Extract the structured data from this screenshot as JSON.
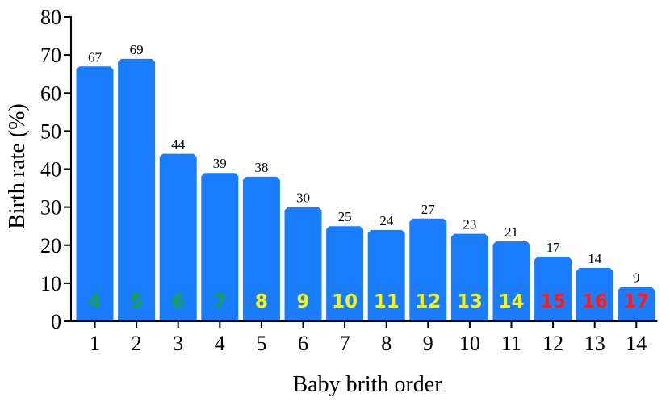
{
  "chart_data": {
    "type": "bar",
    "categories": [
      "1",
      "2",
      "3",
      "4",
      "5",
      "6",
      "7",
      "8",
      "9",
      "10",
      "11",
      "12",
      "13",
      "14"
    ],
    "values": [
      67,
      69,
      44,
      39,
      38,
      30,
      25,
      24,
      27,
      23,
      21,
      17,
      14,
      9
    ],
    "inner_labels": [
      "4",
      "5",
      "6",
      "7",
      "8",
      "9",
      "10",
      "11",
      "12",
      "13",
      "14",
      "15",
      "16",
      "17"
    ],
    "inner_label_colors": [
      "#1aa34a",
      "#1aa34a",
      "#1aa34a",
      "#1aa34a",
      "#f5f516",
      "#f5f516",
      "#f5f516",
      "#f5f516",
      "#f5f516",
      "#f5f516",
      "#f5f516",
      "#ff1a1a",
      "#ff1a1a",
      "#ff1a1a"
    ],
    "bar_color": "#1a7dff",
    "xlabel": "Baby brith order",
    "ylabel": "Birth rate (%)",
    "ylim": [
      0,
      80
    ],
    "yticks": [
      0,
      10,
      20,
      30,
      40,
      50,
      60,
      70,
      80
    ],
    "grid": false
  }
}
